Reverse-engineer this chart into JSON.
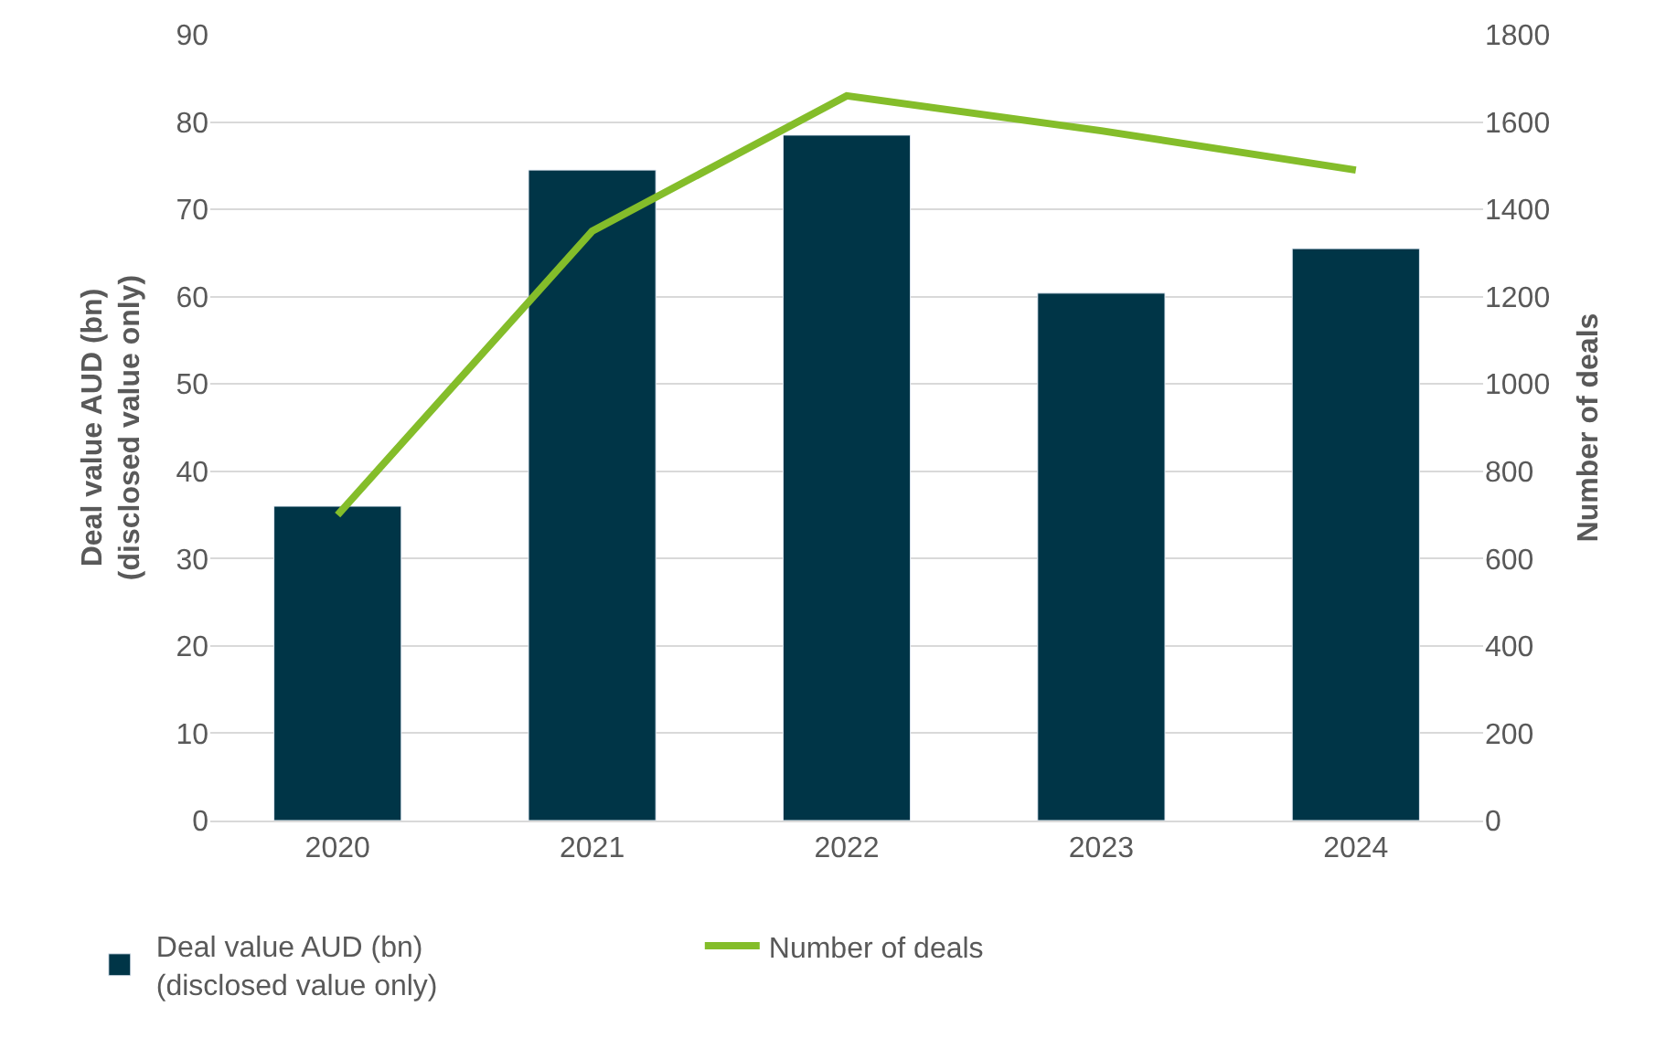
{
  "chart_data": {
    "type": "bar",
    "ylabel": "Deal value AUD (bn)\n(disclosed value only)",
    "y2label": "Number of deals",
    "categories": [
      "2020",
      "2021",
      "2022",
      "2023",
      "2024"
    ],
    "series": [
      {
        "name": "Deal value AUD (bn)\n(disclosed value only)",
        "color": "#003547",
        "values": [
          36,
          74.5,
          78.5,
          60.4,
          65.5
        ]
      },
      {
        "name": "Number of deals",
        "type": "line",
        "axis": "y2",
        "color": "#84bd2a",
        "values": [
          700,
          1350,
          1660,
          1580,
          1490
        ]
      }
    ],
    "ylim": [
      0,
      90
    ],
    "yticks": [
      0,
      10,
      20,
      30,
      40,
      50,
      60,
      70,
      80,
      90
    ],
    "y2lim": [
      0,
      1800
    ],
    "y2ticks": [
      0,
      200,
      400,
      600,
      800,
      1000,
      1200,
      1400,
      1600,
      1800
    ],
    "grid": "y",
    "legend": "bottom left",
    "marker": "none"
  }
}
